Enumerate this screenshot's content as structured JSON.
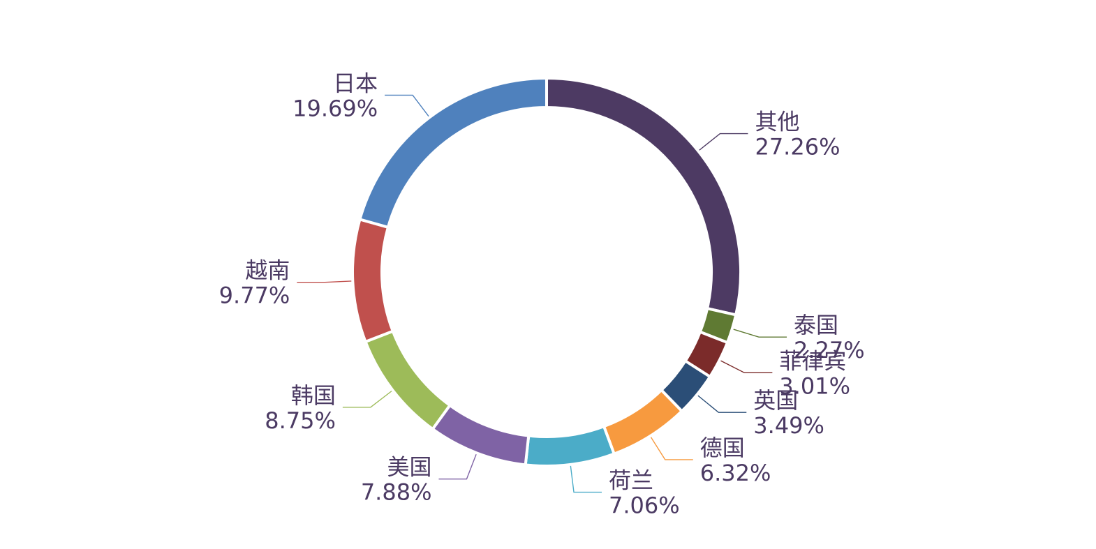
{
  "chart_data": {
    "type": "pie",
    "variant": "donut",
    "title": "",
    "legend": "none",
    "slices": [
      {
        "label": "其他",
        "value": 27.26,
        "display": "27.26%",
        "color": "#4d3a63"
      },
      {
        "label": "泰国",
        "value": 2.27,
        "display": "2.27%",
        "color": "#5f7a33"
      },
      {
        "label": "菲律宾",
        "value": 3.01,
        "display": "3.01%",
        "color": "#7b2b2a"
      },
      {
        "label": "英国",
        "value": 3.49,
        "display": "3.49%",
        "color": "#2b4e77"
      },
      {
        "label": "德国",
        "value": 6.32,
        "display": "6.32%",
        "color": "#f79a3f"
      },
      {
        "label": "荷兰",
        "value": 7.06,
        "display": "7.06%",
        "color": "#4bacc8"
      },
      {
        "label": "美国",
        "value": 7.88,
        "display": "7.88%",
        "color": "#7f63a5"
      },
      {
        "label": "韩国",
        "value": 8.75,
        "display": "8.75%",
        "color": "#9dbb59"
      },
      {
        "label": "越南",
        "value": 9.77,
        "display": "9.77%",
        "color": "#c0504d"
      },
      {
        "label": "日本",
        "value": 19.69,
        "display": "19.69%",
        "color": "#4f81bd"
      },
      {
        "label": "_extra_",
        "value": 0,
        "display": "",
        "color": "#ffffff"
      }
    ]
  }
}
